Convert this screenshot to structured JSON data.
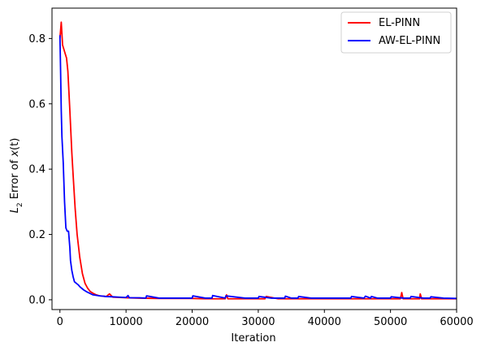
{
  "chart_data": {
    "type": "line",
    "xlabel": "Iteration",
    "ylabel_prefix": "L",
    "ylabel_sub": "2",
    "ylabel_suffix": " Error of ",
    "ylabel_var": "x",
    "ylabel_end": "(t)",
    "xlim": [
      -1200,
      60000
    ],
    "ylim": [
      -0.03,
      0.893
    ],
    "x_ticks": [
      0,
      10000,
      20000,
      30000,
      40000,
      50000,
      60000
    ],
    "x_tick_labels": [
      "0",
      "10000",
      "20000",
      "30000",
      "40000",
      "50000",
      "60000"
    ],
    "y_ticks": [
      0.0,
      0.2,
      0.4,
      0.6,
      0.8
    ],
    "y_tick_labels": [
      "0.0",
      "0.2",
      "0.4",
      "0.6",
      "0.8"
    ],
    "grid": false,
    "legend_position": "top-right",
    "series": [
      {
        "name": "EL-PINN",
        "color": "#ff0000",
        "x": [
          0,
          200,
          400,
          700,
          1000,
          1200,
          1500,
          1800,
          2000,
          2300,
          2600,
          3000,
          3400,
          3800,
          4200,
          4600,
          5000,
          5500,
          6000,
          7000,
          7500,
          8000,
          9000,
          10000,
          12000,
          15000,
          18000,
          20000,
          22000,
          25000,
          25200,
          25400,
          28000,
          30000,
          31000,
          31200,
          33000,
          35000,
          38000,
          40000,
          42000,
          45000,
          48000,
          50000,
          51500,
          51700,
          51900,
          53000,
          54400,
          54500,
          54700,
          56000,
          58000,
          60000
        ],
        "y": [
          0.8,
          0.85,
          0.78,
          0.76,
          0.74,
          0.7,
          0.58,
          0.45,
          0.38,
          0.28,
          0.2,
          0.13,
          0.08,
          0.05,
          0.035,
          0.025,
          0.02,
          0.015,
          0.012,
          0.01,
          0.018,
          0.008,
          0.007,
          0.006,
          0.005,
          0.004,
          0.004,
          0.004,
          0.003,
          0.003,
          0.015,
          0.003,
          0.003,
          0.003,
          0.003,
          0.01,
          0.003,
          0.003,
          0.003,
          0.003,
          0.003,
          0.003,
          0.003,
          0.003,
          0.003,
          0.022,
          0.003,
          0.003,
          0.003,
          0.018,
          0.003,
          0.003,
          0.003,
          0.003
        ]
      },
      {
        "name": "AW-EL-PINN",
        "color": "#0000ff",
        "x": [
          0,
          100,
          200,
          300,
          500,
          700,
          900,
          1100,
          1300,
          1500,
          1600,
          1800,
          2000,
          2200,
          2500,
          2800,
          3000,
          3300,
          3600,
          4000,
          4500,
          5000,
          6000,
          7000,
          8000,
          9000,
          10000,
          10300,
          10500,
          12000,
          13000,
          13100,
          15000,
          18000,
          20000,
          20100,
          22000,
          23000,
          23100,
          25000,
          25100,
          28000,
          30000,
          30100,
          32000,
          34000,
          34100,
          35000,
          36000,
          36100,
          38000,
          40000,
          42000,
          44000,
          44100,
          46000,
          46200,
          47000,
          47100,
          48000,
          50000,
          50100,
          52000,
          53000,
          53100,
          55000,
          56000,
          56100,
          58000,
          60000
        ],
        "y": [
          0.81,
          0.7,
          0.58,
          0.5,
          0.42,
          0.3,
          0.22,
          0.21,
          0.21,
          0.16,
          0.12,
          0.09,
          0.07,
          0.055,
          0.05,
          0.045,
          0.04,
          0.035,
          0.03,
          0.025,
          0.02,
          0.015,
          0.012,
          0.01,
          0.009,
          0.008,
          0.007,
          0.013,
          0.006,
          0.006,
          0.005,
          0.012,
          0.005,
          0.005,
          0.005,
          0.012,
          0.005,
          0.005,
          0.013,
          0.005,
          0.012,
          0.005,
          0.005,
          0.01,
          0.005,
          0.005,
          0.011,
          0.005,
          0.005,
          0.01,
          0.005,
          0.005,
          0.005,
          0.005,
          0.01,
          0.005,
          0.011,
          0.005,
          0.01,
          0.005,
          0.005,
          0.009,
          0.005,
          0.005,
          0.01,
          0.005,
          0.005,
          0.009,
          0.005,
          0.004
        ]
      }
    ]
  }
}
